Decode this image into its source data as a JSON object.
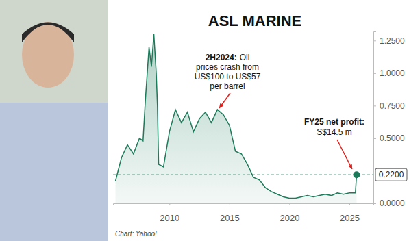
{
  "chart_data": {
    "type": "line",
    "title": "ASL MARINE",
    "color": "#1b7a5a",
    "grid": false,
    "x": [
      2005.5,
      2006.0,
      2006.5,
      2007.0,
      2007.5,
      2007.8,
      2008.0,
      2008.3,
      2008.5,
      2008.7,
      2008.9,
      2009.0,
      2009.1,
      2009.5,
      2010.0,
      2010.5,
      2011.0,
      2011.5,
      2012.0,
      2012.5,
      2013.0,
      2013.5,
      2014.0,
      2014.5,
      2015.0,
      2015.5,
      2016.0,
      2016.5,
      2017.0,
      2017.5,
      2018.0,
      2018.5,
      2019.0,
      2019.5,
      2020.0,
      2020.5,
      2021.0,
      2021.5,
      2022.0,
      2022.5,
      2023.0,
      2023.5,
      2024.0,
      2024.5,
      2025.0,
      2025.5,
      2025.6
    ],
    "values": [
      0.17,
      0.35,
      0.45,
      0.38,
      0.5,
      0.48,
      0.8,
      1.2,
      1.05,
      1.3,
      1.0,
      0.75,
      0.3,
      0.28,
      0.55,
      0.72,
      0.62,
      0.7,
      0.55,
      0.65,
      0.7,
      0.62,
      0.72,
      0.68,
      0.6,
      0.4,
      0.38,
      0.3,
      0.2,
      0.18,
      0.12,
      0.09,
      0.07,
      0.05,
      0.04,
      0.04,
      0.05,
      0.06,
      0.05,
      0.06,
      0.07,
      0.06,
      0.08,
      0.07,
      0.08,
      0.08,
      0.22
    ],
    "xlim": [
      2005.3,
      2027.0
    ],
    "xticks": [
      2010,
      2015,
      2020,
      2025
    ],
    "ylim": [
      0,
      1.32
    ],
    "yticks": [
      {
        "value": 0,
        "label": "0.0000"
      },
      {
        "value": 0.5,
        "label": "0.5000"
      },
      {
        "value": 0.75,
        "label": "0.7500"
      },
      {
        "value": 1.0,
        "label": "1.0000"
      },
      {
        "value": 1.25,
        "label": "1.2500"
      }
    ],
    "last_value": {
      "value": 0.22,
      "label": "0.2200"
    },
    "annotations": [
      {
        "title": "2H2024:",
        "lines": [
          "Oil",
          "prices crash from",
          "US$100 to US$57",
          "per barrel"
        ]
      },
      {
        "title": "FY25 net profit:",
        "lines": [
          "S$14.5 m"
        ]
      }
    ],
    "source": "Chart: Yahoo!"
  }
}
